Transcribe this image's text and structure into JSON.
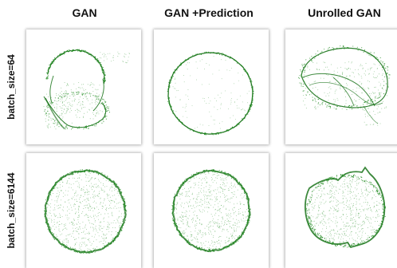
{
  "columns": [
    "GAN",
    "GAN +Prediction",
    "Unrolled GAN"
  ],
  "rows": [
    "batch_size=64",
    "batch_size=6144"
  ],
  "colors": {
    "points": "#1d8a1d",
    "edge": "#0d6b0d"
  },
  "chart_data": {
    "type": "scatter",
    "layout": "grid of 2 rows x 3 columns",
    "column_titles": [
      "GAN",
      "GAN +Prediction",
      "Unrolled GAN"
    ],
    "row_titles": [
      "batch_size=64",
      "batch_size=6144"
    ],
    "axes_visible": false,
    "grid": false,
    "legend": "none",
    "panels": [
      {
        "row": "batch_size=64",
        "column": "GAN",
        "shape": "partial broken ring with scattered interior points"
      },
      {
        "row": "batch_size=64",
        "column": "GAN +Prediction",
        "shape": "thin ring with sparse interior points"
      },
      {
        "row": "batch_size=64",
        "column": "Unrolled GAN",
        "shape": "distorted ring with dense curved streaks"
      },
      {
        "row": "batch_size=6144",
        "column": "GAN",
        "shape": "filled disk with dense rim"
      },
      {
        "row": "batch_size=6144",
        "column": "GAN +Prediction",
        "shape": "filled disk with dense rim"
      },
      {
        "row": "batch_size=6144",
        "column": "Unrolled GAN",
        "shape": "filled disk with jagged rim"
      }
    ]
  }
}
